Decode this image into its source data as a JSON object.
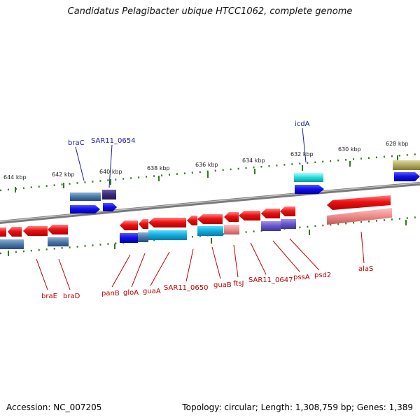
{
  "title": "Candidatus Pelagibacter ubique HTCC1062, complete genome",
  "scale_labels": [
    "644 kbp",
    "642 kbp",
    "640 kbp",
    "638 kbp",
    "636 kbp",
    "634 kbp",
    "632 kbp",
    "630 kbp",
    "628 kbp"
  ],
  "upper_gene_labels": [
    "braC",
    "SAR11_0654",
    "icdA"
  ],
  "lower_gene_labels": [
    "braE",
    "braD",
    "panB",
    "gloA",
    "guaA",
    "SAR11_0650",
    "guaB",
    "ftsJ",
    "SAR11_0647",
    "pssA",
    "psd2",
    "alaS"
  ],
  "footer": {
    "accession": "Accession: NC_007205",
    "stats": "Topology: circular; Length: 1,308,759 bp; Genes: 1,389"
  },
  "colors": {
    "backbone": "#888888",
    "tick": "#2e7d1a",
    "upper_label": "#1a1aa6",
    "lower_label": "#c00000",
    "gene_red": "#ee1111",
    "gene_blue": "#1111dd",
    "gene_cyan": "#11aadd",
    "gene_steel": "#4a78a8",
    "gene_pink": "#ee8a8a",
    "gene_purple": "#6655cc",
    "gene_olive": "#b0a860"
  }
}
